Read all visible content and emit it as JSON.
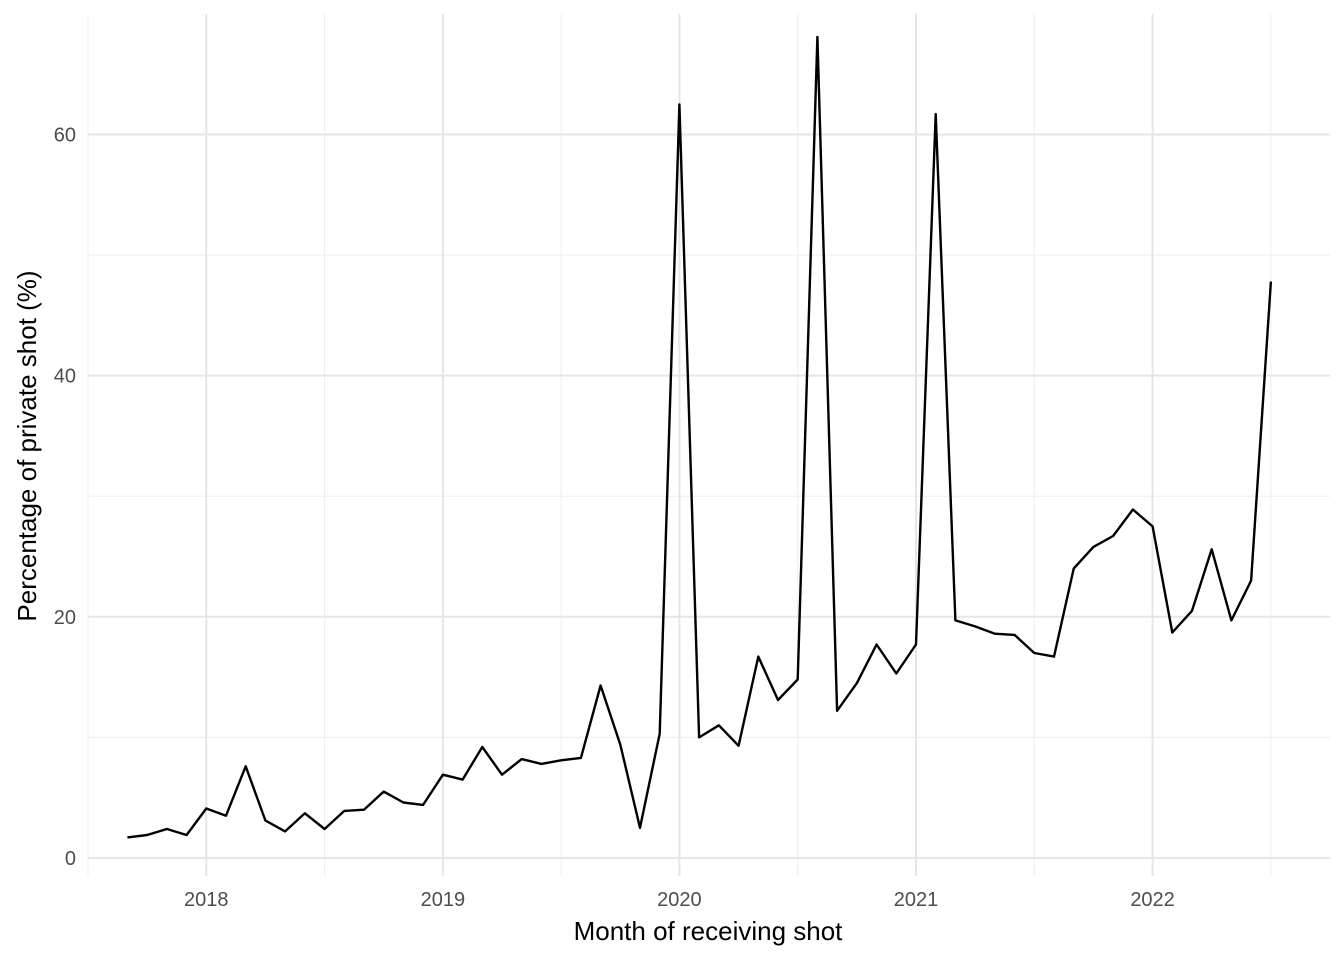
{
  "chart_data": {
    "type": "line",
    "title": "",
    "xlabel": "Month of receiving shot",
    "ylabel": "Percentage of private shot (%)",
    "x_ticks": [
      "2018",
      "2019",
      "2020",
      "2021",
      "2022"
    ],
    "y_ticks": [
      "0",
      "20",
      "40",
      "60"
    ],
    "xlim": [
      "2017-07",
      "2022-10"
    ],
    "ylim": [
      -1.5,
      70
    ],
    "grid": true,
    "legend": "none",
    "line_color": "#000000",
    "series": [
      {
        "x": [
          "2017-09",
          "2017-10",
          "2017-11",
          "2017-12",
          "2018-01",
          "2018-02",
          "2018-03",
          "2018-04",
          "2018-05",
          "2018-06",
          "2018-07",
          "2018-08",
          "2018-09",
          "2018-10",
          "2018-11",
          "2018-12",
          "2019-01",
          "2019-02",
          "2019-03",
          "2019-04",
          "2019-05",
          "2019-06",
          "2019-07",
          "2019-08",
          "2019-09",
          "2019-10",
          "2019-11",
          "2019-12",
          "2020-01",
          "2020-02",
          "2020-03",
          "2020-04",
          "2020-05",
          "2020-06",
          "2020-07",
          "2020-08",
          "2020-09",
          "2020-10",
          "2020-11",
          "2020-12",
          "2021-01",
          "2021-02",
          "2021-03",
          "2021-04",
          "2021-05",
          "2021-06",
          "2021-07",
          "2021-08",
          "2021-09",
          "2021-10",
          "2021-11",
          "2021-12",
          "2022-01",
          "2022-02",
          "2022-03",
          "2022-04",
          "2022-05",
          "2022-06",
          "2022-07"
        ],
        "values": [
          1.7,
          1.9,
          2.4,
          1.9,
          4.1,
          3.5,
          7.6,
          3.1,
          2.2,
          3.7,
          2.4,
          3.9,
          4.0,
          5.5,
          4.6,
          4.4,
          6.9,
          6.5,
          9.2,
          6.9,
          8.2,
          7.8,
          8.1,
          8.3,
          14.3,
          9.4,
          2.5,
          10.3,
          62.5,
          10.0,
          11.0,
          9.3,
          16.7,
          13.1,
          14.8,
          68.1,
          12.2,
          14.5,
          17.7,
          15.3,
          17.7,
          61.7,
          19.7,
          19.2,
          18.6,
          18.5,
          17.0,
          16.7,
          24.0,
          25.8,
          26.7,
          28.9,
          27.5,
          18.7,
          20.5,
          25.6,
          19.7,
          23.0,
          47.8
        ]
      }
    ]
  }
}
